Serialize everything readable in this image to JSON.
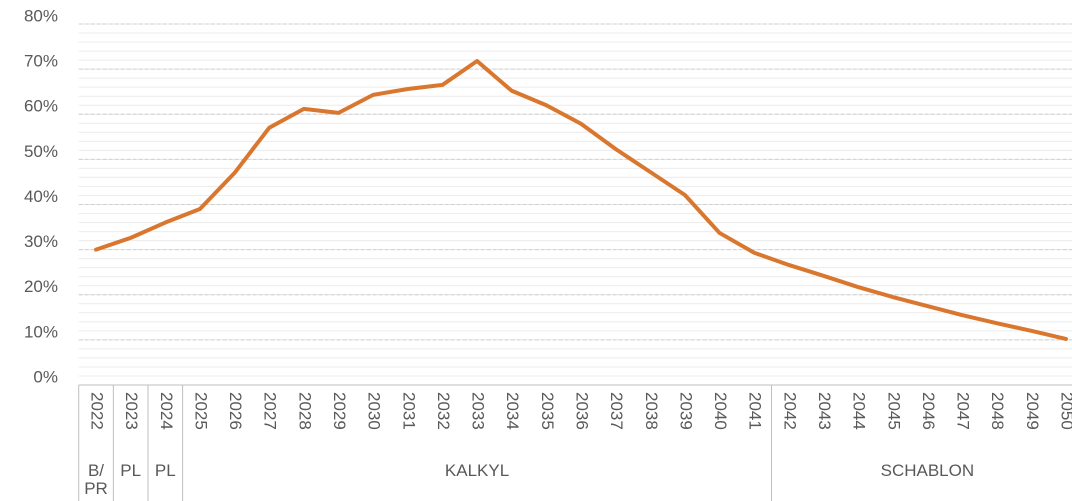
{
  "chart_data": {
    "type": "line",
    "categories": [
      "2022",
      "2023",
      "2024",
      "2025",
      "2026",
      "2027",
      "2028",
      "2029",
      "2030",
      "2031",
      "2032",
      "2033",
      "2034",
      "2035",
      "2036",
      "2037",
      "2038",
      "2039",
      "2040",
      "2041",
      "2042",
      "2043",
      "2044",
      "2045",
      "2046",
      "2047",
      "2048",
      "2049",
      "2050"
    ],
    "x_groups": [
      {
        "label": "B/ PR",
        "span": 1
      },
      {
        "label": "PL",
        "span": 1
      },
      {
        "label": "PL",
        "span": 1
      },
      {
        "label": "KALKYL",
        "span": 17
      },
      {
        "label": "SCHABLON",
        "span": 9
      }
    ],
    "series": [
      {
        "color": "#d9772f",
        "values": [
          30,
          32.6,
          36,
          39,
          47,
          57,
          61.2,
          60.3,
          64.3,
          65.6,
          66.5,
          71.8,
          65.2,
          62,
          57.9,
          52.3,
          47.2,
          42.1,
          33.7,
          29.3,
          26.6,
          24.2,
          21.7,
          19.5,
          17.5,
          15.5,
          13.7,
          12,
          10.2
        ]
      }
    ],
    "ylim": [
      0,
      80
    ],
    "yticks": [
      {
        "value": 0,
        "label": "0%"
      },
      {
        "value": 10,
        "label": "10%"
      },
      {
        "value": 20,
        "label": "20%"
      },
      {
        "value": 30,
        "label": "30%"
      },
      {
        "value": 40,
        "label": "40%"
      },
      {
        "value": 50,
        "label": "50%"
      },
      {
        "value": 60,
        "label": "60%"
      },
      {
        "value": 70,
        "label": "70%"
      },
      {
        "value": 80,
        "label": "80%"
      }
    ],
    "grid": true,
    "minor_grid_step": 2
  }
}
